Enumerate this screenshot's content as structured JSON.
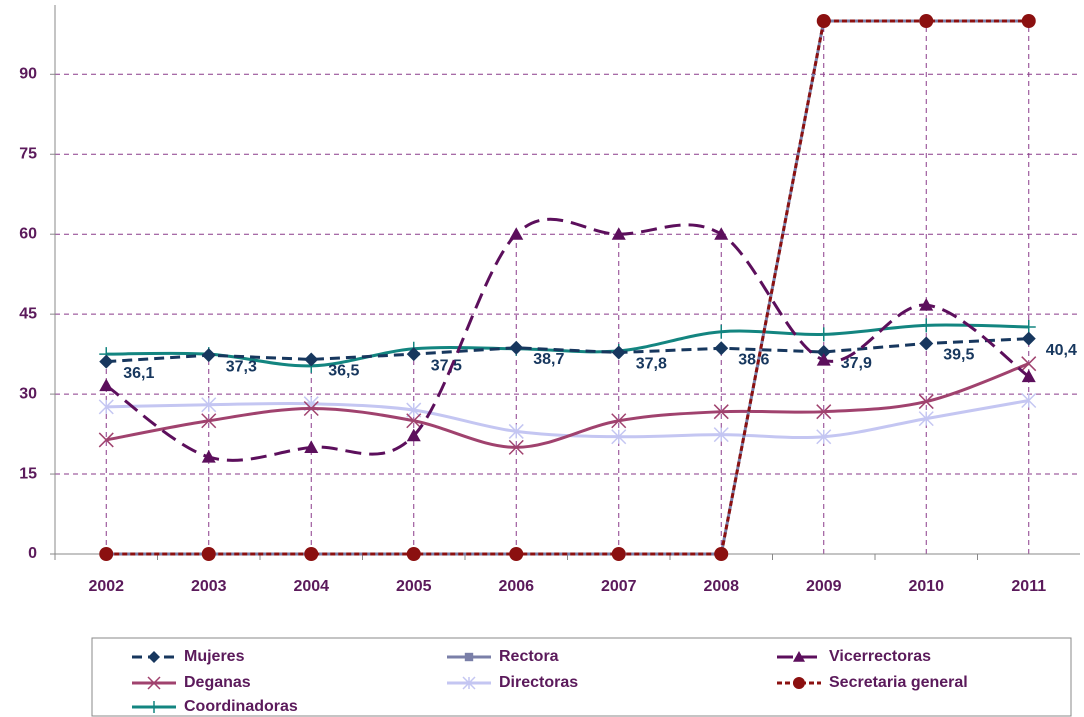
{
  "chart_data": {
    "type": "line",
    "categories": [
      "2002",
      "2003",
      "2004",
      "2005",
      "2006",
      "2007",
      "2008",
      "2009",
      "2010",
      "2011"
    ],
    "ylim": [
      0,
      103
    ],
    "yticks": [
      0,
      15,
      30,
      45,
      60,
      75,
      90
    ],
    "grid": true,
    "droplines": true,
    "legend": "bottom",
    "series": [
      {
        "name": "Mujeres",
        "color": "#17375e",
        "marker": "diamond",
        "dash": "10 6",
        "smooth": false,
        "values": [
          36.1,
          37.3,
          36.5,
          37.5,
          38.7,
          37.8,
          38.6,
          37.9,
          39.5,
          40.4
        ],
        "value_labels": [
          "36,1",
          "37,3",
          "36,5",
          "37,5",
          "38,7",
          "37,8",
          "38,6",
          "37,9",
          "39,5",
          "40,4"
        ]
      },
      {
        "name": "Rectora",
        "color": "#7a7fa8",
        "marker": "square",
        "dash": "none",
        "smooth": false,
        "values": [
          0,
          0,
          0,
          0,
          0,
          0,
          0,
          100,
          100,
          100
        ]
      },
      {
        "name": "Vicerrectoras",
        "color": "#5c0f5c",
        "marker": "triangle",
        "dash": "16 8",
        "smooth": true,
        "values": [
          31.6,
          18.2,
          20,
          22.2,
          60,
          60,
          60,
          36.4,
          46.7,
          33.3
        ]
      },
      {
        "name": "Deganas",
        "color": "#a0426e",
        "marker": "x",
        "dash": "none",
        "smooth": true,
        "values": [
          21.4,
          25,
          27.3,
          25,
          20,
          25,
          26.7,
          26.7,
          28.6,
          35.7
        ]
      },
      {
        "name": "Directoras",
        "color": "#c4c6f2",
        "marker": "asterisk",
        "dash": "none",
        "smooth": true,
        "values": [
          27.6,
          28,
          28.2,
          27,
          23,
          22,
          22.4,
          22,
          25.4,
          28.8
        ]
      },
      {
        "name": "Secretaria general",
        "color": "#8b1010",
        "marker": "circle",
        "dash": "5 3",
        "smooth": false,
        "values": [
          0,
          0,
          0,
          0,
          0,
          0,
          0,
          100,
          100,
          100
        ]
      },
      {
        "name": "Coordinadoras",
        "color": "#138580",
        "marker": "plus",
        "dash": "none",
        "smooth": true,
        "values": [
          37.5,
          37.5,
          35.3,
          38.5,
          38.5,
          38.1,
          41.7,
          41.2,
          42.9,
          42.6
        ]
      }
    ]
  }
}
